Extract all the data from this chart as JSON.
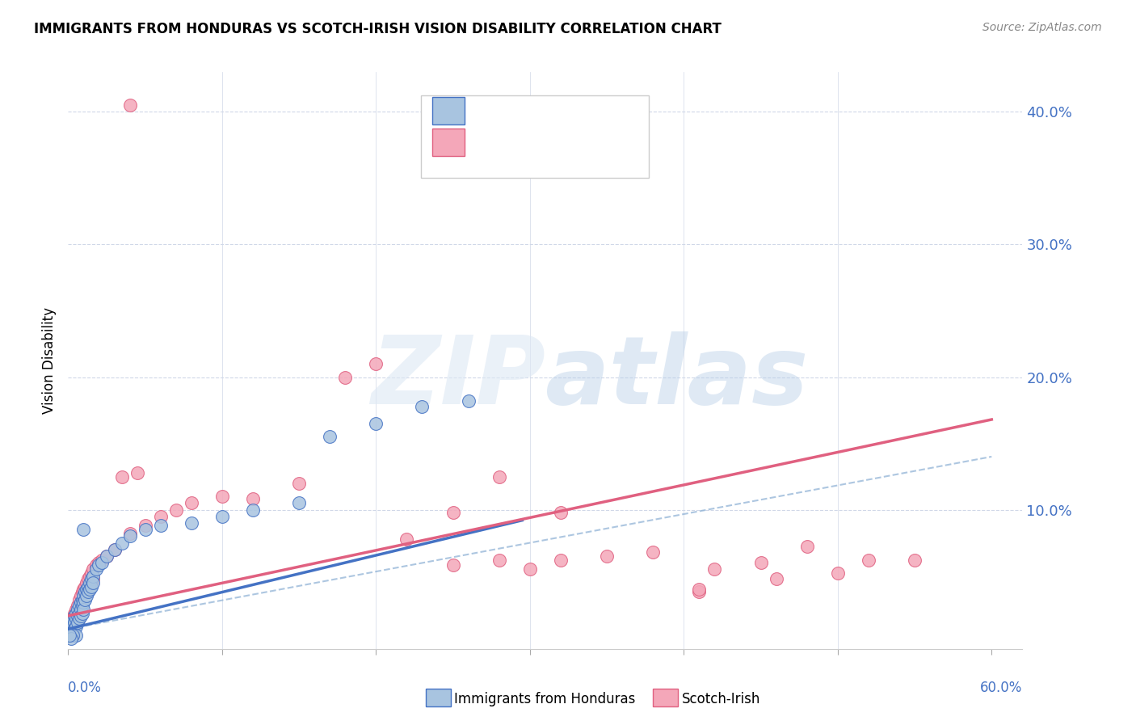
{
  "title": "IMMIGRANTS FROM HONDURAS VS SCOTCH-IRISH VISION DISABILITY CORRELATION CHART",
  "source": "Source: ZipAtlas.com",
  "ylabel": "Vision Disability",
  "xlim": [
    0.0,
    0.62
  ],
  "ylim": [
    -0.005,
    0.43
  ],
  "blue_color": "#a8c4e0",
  "blue_line_color": "#4472c4",
  "pink_color": "#f4a7b9",
  "pink_line_color": "#e06080",
  "stat_color": "#4472c4",
  "background_color": "#ffffff",
  "grid_color": "#d0d8e8",
  "blue_scatter": [
    [
      0.001,
      0.01
    ],
    [
      0.001,
      0.012
    ],
    [
      0.001,
      0.008
    ],
    [
      0.002,
      0.015
    ],
    [
      0.002,
      0.01
    ],
    [
      0.002,
      0.008
    ],
    [
      0.003,
      0.018
    ],
    [
      0.003,
      0.012
    ],
    [
      0.003,
      0.008
    ],
    [
      0.004,
      0.02
    ],
    [
      0.004,
      0.015
    ],
    [
      0.004,
      0.01
    ],
    [
      0.005,
      0.022
    ],
    [
      0.005,
      0.018
    ],
    [
      0.005,
      0.012
    ],
    [
      0.006,
      0.025
    ],
    [
      0.006,
      0.02
    ],
    [
      0.006,
      0.015
    ],
    [
      0.007,
      0.028
    ],
    [
      0.007,
      0.022
    ],
    [
      0.007,
      0.018
    ],
    [
      0.008,
      0.03
    ],
    [
      0.008,
      0.025
    ],
    [
      0.008,
      0.02
    ],
    [
      0.009,
      0.032
    ],
    [
      0.009,
      0.028
    ],
    [
      0.009,
      0.022
    ],
    [
      0.01,
      0.035
    ],
    [
      0.01,
      0.03
    ],
    [
      0.01,
      0.025
    ],
    [
      0.011,
      0.038
    ],
    [
      0.011,
      0.032
    ],
    [
      0.012,
      0.04
    ],
    [
      0.012,
      0.035
    ],
    [
      0.013,
      0.042
    ],
    [
      0.013,
      0.038
    ],
    [
      0.014,
      0.045
    ],
    [
      0.014,
      0.04
    ],
    [
      0.015,
      0.048
    ],
    [
      0.015,
      0.042
    ],
    [
      0.016,
      0.05
    ],
    [
      0.016,
      0.045
    ],
    [
      0.018,
      0.055
    ],
    [
      0.02,
      0.058
    ],
    [
      0.022,
      0.06
    ],
    [
      0.025,
      0.065
    ],
    [
      0.03,
      0.07
    ],
    [
      0.035,
      0.075
    ],
    [
      0.04,
      0.08
    ],
    [
      0.05,
      0.085
    ],
    [
      0.06,
      0.088
    ],
    [
      0.08,
      0.09
    ],
    [
      0.1,
      0.095
    ],
    [
      0.12,
      0.1
    ],
    [
      0.15,
      0.105
    ],
    [
      0.17,
      0.155
    ],
    [
      0.2,
      0.165
    ],
    [
      0.23,
      0.178
    ],
    [
      0.26,
      0.182
    ],
    [
      0.01,
      0.085
    ],
    [
      0.005,
      0.005
    ],
    [
      0.003,
      0.005
    ],
    [
      0.002,
      0.003
    ],
    [
      0.001,
      0.005
    ]
  ],
  "pink_scatter": [
    [
      0.001,
      0.01
    ],
    [
      0.001,
      0.008
    ],
    [
      0.002,
      0.015
    ],
    [
      0.002,
      0.01
    ],
    [
      0.003,
      0.018
    ],
    [
      0.003,
      0.012
    ],
    [
      0.004,
      0.022
    ],
    [
      0.004,
      0.015
    ],
    [
      0.005,
      0.025
    ],
    [
      0.005,
      0.018
    ],
    [
      0.006,
      0.028
    ],
    [
      0.006,
      0.022
    ],
    [
      0.007,
      0.032
    ],
    [
      0.007,
      0.025
    ],
    [
      0.008,
      0.035
    ],
    [
      0.008,
      0.028
    ],
    [
      0.009,
      0.038
    ],
    [
      0.009,
      0.03
    ],
    [
      0.01,
      0.04
    ],
    [
      0.01,
      0.032
    ],
    [
      0.011,
      0.042
    ],
    [
      0.011,
      0.035
    ],
    [
      0.012,
      0.045
    ],
    [
      0.012,
      0.038
    ],
    [
      0.013,
      0.048
    ],
    [
      0.013,
      0.04
    ],
    [
      0.014,
      0.05
    ],
    [
      0.014,
      0.042
    ],
    [
      0.015,
      0.052
    ],
    [
      0.015,
      0.045
    ],
    [
      0.016,
      0.055
    ],
    [
      0.016,
      0.048
    ],
    [
      0.018,
      0.058
    ],
    [
      0.02,
      0.06
    ],
    [
      0.022,
      0.062
    ],
    [
      0.025,
      0.065
    ],
    [
      0.03,
      0.07
    ],
    [
      0.035,
      0.125
    ],
    [
      0.04,
      0.082
    ],
    [
      0.045,
      0.128
    ],
    [
      0.05,
      0.088
    ],
    [
      0.06,
      0.095
    ],
    [
      0.07,
      0.1
    ],
    [
      0.08,
      0.105
    ],
    [
      0.1,
      0.11
    ],
    [
      0.12,
      0.108
    ],
    [
      0.15,
      0.12
    ],
    [
      0.18,
      0.2
    ],
    [
      0.2,
      0.21
    ],
    [
      0.22,
      0.078
    ],
    [
      0.25,
      0.058
    ],
    [
      0.28,
      0.062
    ],
    [
      0.32,
      0.098
    ],
    [
      0.35,
      0.065
    ],
    [
      0.38,
      0.068
    ],
    [
      0.41,
      0.038
    ],
    [
      0.45,
      0.06
    ],
    [
      0.48,
      0.072
    ],
    [
      0.5,
      0.052
    ],
    [
      0.52,
      0.062
    ],
    [
      0.04,
      0.405
    ],
    [
      0.25,
      0.098
    ],
    [
      0.3,
      0.055
    ],
    [
      0.41,
      0.04
    ],
    [
      0.55,
      0.062
    ],
    [
      0.003,
      0.005
    ],
    [
      0.002,
      0.008
    ],
    [
      0.001,
      0.005
    ],
    [
      0.28,
      0.125
    ],
    [
      0.32,
      0.062
    ],
    [
      0.42,
      0.055
    ],
    [
      0.46,
      0.048
    ]
  ],
  "blue_trend_x": [
    0.0,
    0.295
  ],
  "blue_trend_y": [
    0.01,
    0.092
  ],
  "pink_trend_x": [
    0.0,
    0.6
  ],
  "pink_trend_y": [
    0.02,
    0.168
  ],
  "dashed_trend_x": [
    0.0,
    0.6
  ],
  "dashed_trend_y": [
    0.01,
    0.14
  ]
}
